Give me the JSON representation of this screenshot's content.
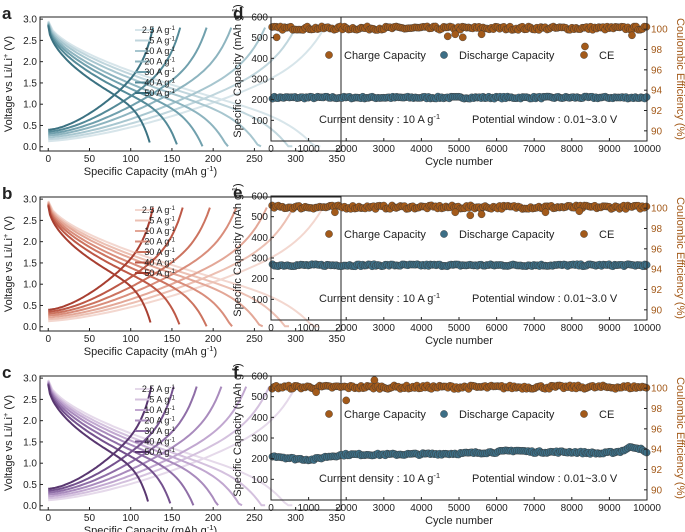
{
  "figure": {
    "title": ""
  },
  "chart_data": [
    {
      "panel": "a",
      "type": "line",
      "xlabel": "Specific Capacity (mAh g-1)",
      "ylabel": "Voltage vs Li/Li+ (V)",
      "xlim": [
        -10,
        355
      ],
      "ylim": [
        -0.1,
        3.05
      ],
      "xticks": [
        0,
        50,
        100,
        150,
        200,
        250,
        300,
        350
      ],
      "yticks": [
        0.0,
        0.5,
        1.0,
        1.5,
        2.0,
        2.5,
        3.0
      ],
      "legend_position": "right",
      "series": [
        {
          "name": "2.5 A g-1",
          "color": "#d7e5ea",
          "charge_capacity": 335,
          "discharge_capacity": 330
        },
        {
          "name": "5 A g-1",
          "color": "#c0d6dd",
          "charge_capacity": 300,
          "discharge_capacity": 296
        },
        {
          "name": "10 A g-1",
          "color": "#a7c6cf",
          "charge_capacity": 263,
          "discharge_capacity": 258
        },
        {
          "name": "20 A g-1",
          "color": "#8db4bf",
          "charge_capacity": 222,
          "discharge_capacity": 218
        },
        {
          "name": "30 A g-1",
          "color": "#70a0ad",
          "charge_capacity": 192,
          "discharge_capacity": 187
        },
        {
          "name": "40 A g-1",
          "color": "#548a98",
          "charge_capacity": 160,
          "discharge_capacity": 156
        },
        {
          "name": "50 A g-1",
          "color": "#3b7282",
          "charge_capacity": 127,
          "discharge_capacity": 123
        }
      ]
    },
    {
      "panel": "b",
      "type": "line",
      "xlabel": "Specific Capacity (mAh g-1)",
      "ylabel": "Voltage vs Li/Li+ (V)",
      "xlim": [
        -10,
        355
      ],
      "ylim": [
        -0.1,
        3.05
      ],
      "xticks": [
        0,
        50,
        100,
        150,
        200,
        250,
        300,
        350
      ],
      "yticks": [
        0.0,
        0.5,
        1.0,
        1.5,
        2.0,
        2.5,
        3.0
      ],
      "legend_position": "right",
      "series": [
        {
          "name": "2.5 A g-1",
          "color": "#f3d7cf",
          "charge_capacity": 333,
          "discharge_capacity": 328
        },
        {
          "name": "5 A g-1",
          "color": "#ecc0b3",
          "charge_capacity": 297,
          "discharge_capacity": 292
        },
        {
          "name": "10 A g-1",
          "color": "#e3a797",
          "charge_capacity": 265,
          "discharge_capacity": 260
        },
        {
          "name": "20 A g-1",
          "color": "#d98d7b",
          "charge_capacity": 228,
          "discharge_capacity": 223
        },
        {
          "name": "30 A g-1",
          "color": "#cc735f",
          "charge_capacity": 196,
          "discharge_capacity": 192
        },
        {
          "name": "40 A g-1",
          "color": "#bd5846",
          "charge_capacity": 163,
          "discharge_capacity": 159
        },
        {
          "name": "50 A g-1",
          "color": "#a83f31",
          "charge_capacity": 127,
          "discharge_capacity": 124
        }
      ]
    },
    {
      "panel": "c",
      "type": "line",
      "xlabel": "Specific Capacity (mAh g-1)",
      "ylabel": "Voltage vs Li/Li+ (V)",
      "xlim": [
        -10,
        355
      ],
      "ylim": [
        -0.1,
        3.05
      ],
      "xticks": [
        0,
        50,
        100,
        150,
        200,
        250,
        300,
        350
      ],
      "yticks": [
        0.0,
        0.5,
        1.0,
        1.5,
        2.0,
        2.5,
        3.0
      ],
      "legend_position": "right",
      "series": [
        {
          "name": "2.5 A g-1",
          "color": "#e5d9ea",
          "charge_capacity": 300,
          "discharge_capacity": 296
        },
        {
          "name": "5 A g-1",
          "color": "#d4c1de",
          "charge_capacity": 268,
          "discharge_capacity": 263
        },
        {
          "name": "10 A g-1",
          "color": "#c1a7d0",
          "charge_capacity": 240,
          "discharge_capacity": 235
        },
        {
          "name": "20 A g-1",
          "color": "#a98bbd",
          "charge_capacity": 210,
          "discharge_capacity": 206
        },
        {
          "name": "30 A g-1",
          "color": "#8f6ea7",
          "charge_capacity": 180,
          "discharge_capacity": 176
        },
        {
          "name": "40 A g-1",
          "color": "#74518e",
          "charge_capacity": 152,
          "discharge_capacity": 148
        },
        {
          "name": "50 A g-1",
          "color": "#593770",
          "charge_capacity": 125,
          "discharge_capacity": 121
        }
      ]
    },
    {
      "panel": "d",
      "type": "scatter",
      "xlabel": "Cycle number",
      "ylabel": "Specific Capacity (mAh g-1)",
      "y2label": "Coulombic Efficiency (%)",
      "xlim": [
        0,
        10000
      ],
      "ylim": [
        0,
        600
      ],
      "y2lim": [
        89,
        101.2
      ],
      "xticks": [
        0,
        1000,
        2000,
        3000,
        4000,
        5000,
        6000,
        7000,
        8000,
        9000,
        10000
      ],
      "yticks": [
        100,
        200,
        300,
        400,
        500,
        600
      ],
      "y2ticks": [
        90,
        92,
        94,
        96,
        98,
        100
      ],
      "capacity_mean": 210,
      "ce_mean": 100.1,
      "ce_outliers": [
        [
          150,
          99.2
        ],
        [
          4700,
          99.3
        ],
        [
          4900,
          99.5
        ],
        [
          5100,
          99.2
        ],
        [
          5600,
          99.5
        ],
        [
          8350,
          98.3
        ],
        [
          9600,
          99.4
        ]
      ],
      "legend": [
        "Charge Capacity",
        "Discharge Capacity",
        "CE"
      ],
      "annotations": [
        "Current density : 10 A g-1",
        "Potential window : 0.01~3.0 V"
      ]
    },
    {
      "panel": "e",
      "type": "scatter",
      "xlabel": "Cycle number",
      "ylabel": "Specific Capacity (mAh g-1)",
      "y2label": "Coulombic Efficiency (%)",
      "xlim": [
        0,
        10000
      ],
      "ylim": [
        0,
        600
      ],
      "y2lim": [
        89,
        101.2
      ],
      "xticks": [
        0,
        1000,
        2000,
        3000,
        4000,
        5000,
        6000,
        7000,
        8000,
        9000,
        10000
      ],
      "yticks": [
        100,
        200,
        300,
        400,
        500,
        600
      ],
      "y2ticks": [
        90,
        92,
        94,
        96,
        98,
        100
      ],
      "capacity_mean": 265,
      "ce_mean": 100.1,
      "ce_outliers": [
        [
          1700,
          99.6
        ],
        [
          4900,
          99.6
        ],
        [
          5300,
          99.3
        ],
        [
          5600,
          99.4
        ],
        [
          7300,
          99.6
        ],
        [
          8200,
          99.7
        ]
      ],
      "legend": [
        "Charge Capacity",
        "Discharge Capacity",
        "CE"
      ],
      "annotations": [
        "Current density : 10 A g-1",
        "Potential window : 0.01~3.0 V"
      ]
    },
    {
      "panel": "f",
      "type": "scatter",
      "xlabel": "Cycle number",
      "ylabel": "Specific Capacity (mAh g-1)",
      "y2label": "Coulombic Efficiency (%)",
      "xlim": [
        0,
        10000
      ],
      "ylim": [
        0,
        600
      ],
      "y2lim": [
        89,
        101.2
      ],
      "xticks": [
        0,
        1000,
        2000,
        3000,
        4000,
        5000,
        6000,
        7000,
        8000,
        9000,
        10000
      ],
      "yticks": [
        100,
        200,
        300,
        400,
        500,
        600
      ],
      "y2ticks": [
        90,
        92,
        94,
        96,
        98,
        100
      ],
      "capacity_profile": [
        [
          0,
          215
        ],
        [
          600,
          200
        ],
        [
          1100,
          195
        ],
        [
          1500,
          210
        ],
        [
          2000,
          220
        ],
        [
          3000,
          220
        ],
        [
          4000,
          222
        ],
        [
          5000,
          225
        ],
        [
          6000,
          232
        ],
        [
          6500,
          240
        ],
        [
          7000,
          232
        ],
        [
          8000,
          232
        ],
        [
          8800,
          225
        ],
        [
          9300,
          235
        ],
        [
          9600,
          258
        ],
        [
          9800,
          250
        ],
        [
          10000,
          225
        ]
      ],
      "ce_mean": 100.1,
      "ce_outliers": [
        [
          2000,
          98.8
        ],
        [
          2750,
          100.8
        ],
        [
          1200,
          99.6
        ]
      ],
      "legend": [
        "Charge Capacity",
        "Discharge Capacity",
        "CE"
      ],
      "annotations": [
        "Current density : 10 A g-1",
        "Potential window : 0.01~3.0 V"
      ]
    }
  ]
}
